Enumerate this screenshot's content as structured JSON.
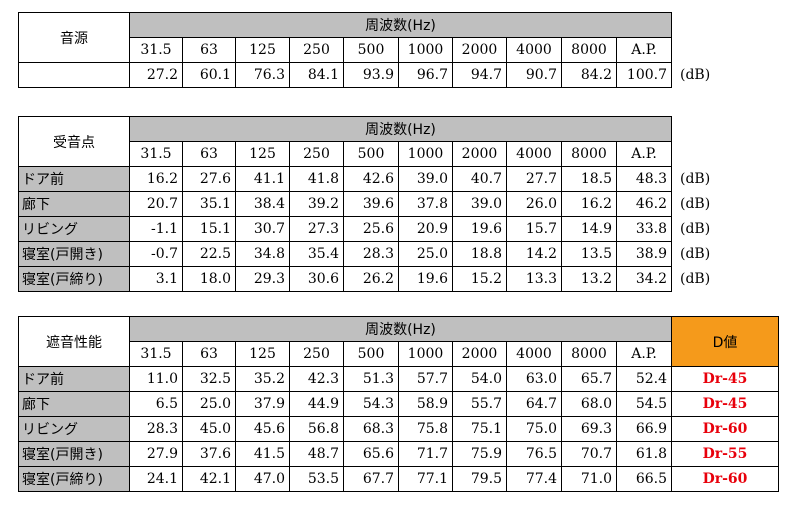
{
  "header_label": "周波数(Hz)",
  "frequencies": [
    "31.5",
    "63",
    "125",
    "250",
    "500",
    "1000",
    "2000",
    "4000",
    "8000",
    "A.P."
  ],
  "unit": "(dB)",
  "source": {
    "title": "音源",
    "values": [
      "27.2",
      "60.1",
      "76.3",
      "84.1",
      "93.9",
      "96.7",
      "94.7",
      "90.7",
      "84.2",
      "100.7"
    ]
  },
  "receive": {
    "title": "受音点",
    "rows": [
      {
        "label": "ドア前",
        "values": [
          "16.2",
          "27.6",
          "41.1",
          "41.8",
          "42.6",
          "39.0",
          "40.7",
          "27.7",
          "18.5",
          "48.3"
        ]
      },
      {
        "label": "廊下",
        "values": [
          "20.7",
          "35.1",
          "38.4",
          "39.2",
          "39.6",
          "37.8",
          "39.0",
          "26.0",
          "16.2",
          "46.2"
        ]
      },
      {
        "label": "リビング",
        "values": [
          "-1.1",
          "15.1",
          "30.7",
          "27.3",
          "25.6",
          "20.9",
          "19.6",
          "15.7",
          "14.9",
          "33.8"
        ]
      },
      {
        "label": "寝室(戸開き)",
        "values": [
          "-0.7",
          "22.5",
          "34.8",
          "35.4",
          "28.3",
          "25.0",
          "18.8",
          "14.2",
          "13.5",
          "38.9"
        ]
      },
      {
        "label": "寝室(戸締り)",
        "values": [
          "3.1",
          "18.0",
          "29.3",
          "30.6",
          "26.2",
          "19.6",
          "15.2",
          "13.3",
          "13.2",
          "34.2"
        ]
      }
    ]
  },
  "insulation": {
    "title": "遮音性能",
    "d_header": "D値",
    "d_color": "#e8000b",
    "d_header_bg": "#f59a1b",
    "rows": [
      {
        "label": "ドア前",
        "values": [
          "11.0",
          "32.5",
          "35.2",
          "42.3",
          "51.3",
          "57.7",
          "54.0",
          "63.0",
          "65.7",
          "52.4"
        ],
        "d": "Dr-45"
      },
      {
        "label": "廊下",
        "values": [
          "6.5",
          "25.0",
          "37.9",
          "44.9",
          "54.3",
          "58.9",
          "55.7",
          "64.7",
          "68.0",
          "54.5"
        ],
        "d": "Dr-45"
      },
      {
        "label": "リビング",
        "values": [
          "28.3",
          "45.0",
          "45.6",
          "56.8",
          "68.3",
          "75.8",
          "75.1",
          "75.0",
          "69.3",
          "66.9"
        ],
        "d": "Dr-60"
      },
      {
        "label": "寝室(戸開き)",
        "values": [
          "27.9",
          "37.6",
          "41.5",
          "48.7",
          "65.6",
          "71.7",
          "75.9",
          "76.5",
          "70.7",
          "61.8"
        ],
        "d": "Dr-55"
      },
      {
        "label": "寝室(戸締り)",
        "values": [
          "24.1",
          "42.1",
          "47.0",
          "53.5",
          "67.7",
          "77.1",
          "79.5",
          "77.4",
          "71.0",
          "66.5"
        ],
        "d": "Dr-60"
      }
    ]
  }
}
